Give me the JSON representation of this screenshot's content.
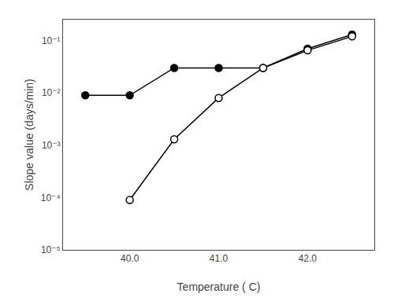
{
  "chart_data": {
    "type": "line",
    "xlabel": "Temperature ( C)",
    "ylabel": "Slope value (days/min)",
    "log": "y",
    "grid": false,
    "series": [
      {
        "color": "black",
        "marker": "filled",
        "x": [
          39.5,
          40.0,
          40.5,
          41.0,
          41.5,
          42.0,
          42.5
        ],
        "values": [
          0.009,
          0.009,
          0.03,
          0.03,
          0.03,
          0.07,
          0.13
        ]
      },
      {
        "color": "black",
        "marker": "open",
        "x": [
          40.0,
          40.5,
          41.0,
          41.5,
          42.0,
          42.5
        ],
        "values": [
          9e-05,
          0.0013,
          0.008,
          0.03,
          0.065,
          0.12
        ]
      }
    ],
    "xlim": [
      39.25,
      42.75
    ],
    "xticks": [
      {
        "value": 40.0,
        "label": "40.0"
      },
      {
        "value": 41.0,
        "label": "41.0"
      },
      {
        "value": 42.0,
        "label": "42.0"
      }
    ],
    "ylim": [
      1e-05,
      0.25118864315095796
    ],
    "yticks": [
      {
        "value": 1e-05,
        "label": "10⁻⁵"
      },
      {
        "value": 0.0001,
        "label": "10⁻⁴"
      },
      {
        "value": 0.001,
        "label": "10⁻³"
      },
      {
        "value": 0.01,
        "label": "10⁻²"
      },
      {
        "value": 0.1,
        "label": "10⁻¹"
      }
    ]
  }
}
